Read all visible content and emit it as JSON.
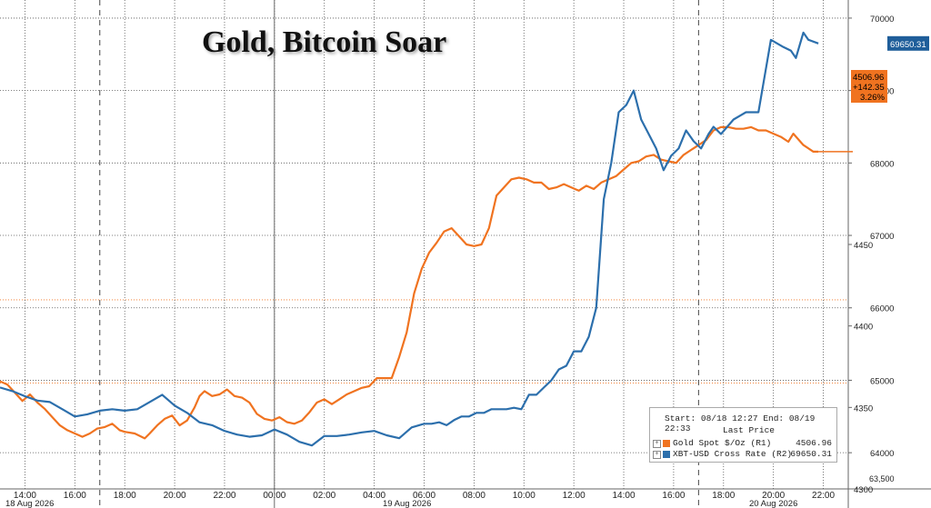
{
  "chart_data": {
    "type": "line",
    "title": "Gold, Bitcoin Soar",
    "x_tick_labels": [
      "14:00",
      "16:00",
      "18:00",
      "20:00",
      "22:00",
      "00:00",
      "02:00",
      "04:00",
      "06:00",
      "08:00",
      "10:00",
      "12:00",
      "14:00",
      "16:00",
      "18:00",
      "20:00",
      "22:00"
    ],
    "date_labels": [
      "18 Aug 2026",
      "19 Aug 2026",
      "20 Aug 2026"
    ],
    "y_left": {
      "ticks": [
        4300,
        4350,
        4400,
        4450
      ],
      "range": [
        4300,
        4600
      ],
      "tick_labels": [
        "4300",
        "4350",
        "4400",
        "4450"
      ]
    },
    "y_right": {
      "ticks": [
        64000,
        65000,
        66000,
        67000,
        68000,
        69000,
        70000
      ],
      "range": [
        63500,
        70250
      ],
      "tick_labels": [
        "64000",
        "65000",
        "66000",
        "67000",
        "68000",
        "69000",
        "70000"
      ]
    },
    "reference_lines_gold": [
      4365,
      4416
    ],
    "series": [
      {
        "name": "Gold Spot $/Oz (R1)",
        "axis": "left",
        "color": "#F07320",
        "last": "4506.96",
        "x": [
          13.0,
          13.3,
          13.6,
          13.9,
          14.2,
          14.5,
          14.8,
          15.1,
          15.4,
          15.7,
          16.0,
          16.3,
          16.6,
          16.9,
          17.2,
          17.5,
          17.8,
          18.0,
          18.4,
          18.8,
          19.0,
          19.3,
          19.6,
          19.9,
          20.2,
          20.5,
          20.8,
          21.0,
          21.2,
          21.5,
          21.8,
          22.1,
          22.4,
          22.7,
          23.0,
          23.3,
          23.6,
          23.9,
          24.2,
          24.5,
          24.8,
          25.1,
          25.4,
          25.7,
          26.0,
          26.3,
          26.6,
          26.9,
          27.2,
          27.5,
          27.8,
          28.1,
          28.4,
          28.7,
          29.0,
          29.3,
          29.6,
          29.9,
          30.2,
          30.5,
          30.8,
          31.1,
          31.4,
          31.7,
          32.0,
          32.3,
          32.6,
          32.9,
          33.2,
          33.5,
          33.8,
          34.1,
          34.4,
          34.7,
          35.0,
          35.3,
          35.6,
          35.9,
          36.2,
          36.5,
          36.8,
          37.1,
          37.4,
          37.7,
          38.0,
          38.3,
          38.6,
          38.9,
          39.2,
          39.5,
          39.8,
          40.1,
          40.4,
          40.7,
          41.0,
          41.3,
          41.6,
          41.9,
          42.2,
          42.5,
          42.8,
          43.1,
          43.4,
          43.7,
          44.0,
          44.3,
          44.6,
          44.8,
          45.2,
          45.6,
          45.8
        ],
        "values": [
          4366,
          4364,
          4359,
          4354,
          4358,
          4353,
          4349,
          4344,
          4339,
          4336,
          4334,
          4332,
          4334,
          4337,
          4338,
          4340,
          4336,
          4335,
          4334,
          4331,
          4334,
          4339,
          4343,
          4345,
          4339,
          4342,
          4350,
          4357,
          4360,
          4357,
          4358,
          4361,
          4357,
          4356,
          4353,
          4346,
          4343,
          4342,
          4344,
          4341,
          4340,
          4342,
          4347,
          4353,
          4355,
          4352,
          4355,
          4358,
          4360,
          4362,
          4363,
          4368,
          4368,
          4368,
          4381,
          4396,
          4420,
          4435,
          4445,
          4451,
          4458,
          4460,
          4455,
          4450,
          4449,
          4450,
          4460,
          4480,
          4485,
          4490,
          4491,
          4490,
          4488,
          4488,
          4484,
          4485,
          4487,
          4485,
          4483,
          4486,
          4484,
          4488,
          4490,
          4492,
          4496,
          4500,
          4501,
          4504,
          4505,
          4502,
          4501,
          4500,
          4505,
          4508,
          4511,
          4514,
          4520,
          4522,
          4522,
          4521,
          4521,
          4522,
          4520,
          4520,
          4518,
          4516,
          4513,
          4518,
          4511,
          4506.96,
          4506.96
        ]
      },
      {
        "name": "XBT-USD Cross Rate (R2)",
        "axis": "right",
        "color": "#2C6FAC",
        "last": "69650.31",
        "x": [
          13.0,
          13.5,
          14.0,
          14.5,
          15.0,
          15.5,
          16.0,
          16.5,
          17.0,
          17.5,
          18.0,
          18.5,
          19.0,
          19.5,
          20.0,
          20.5,
          21.0,
          21.5,
          22.0,
          22.5,
          23.0,
          23.5,
          24.0,
          24.5,
          25.0,
          25.5,
          26.0,
          26.5,
          27.0,
          27.5,
          28.0,
          28.5,
          29.0,
          29.5,
          30.0,
          30.3,
          30.6,
          30.9,
          31.2,
          31.5,
          31.8,
          32.1,
          32.4,
          32.7,
          33.0,
          33.3,
          33.6,
          33.9,
          34.2,
          34.5,
          34.8,
          35.1,
          35.4,
          35.7,
          36.0,
          36.3,
          36.6,
          36.9,
          37.2,
          37.5,
          37.8,
          38.1,
          38.4,
          38.7,
          39.0,
          39.3,
          39.6,
          39.9,
          40.2,
          40.5,
          40.8,
          41.1,
          41.4,
          41.6,
          41.9,
          42.4,
          42.9,
          43.4,
          43.9,
          44.4,
          44.7,
          44.9,
          45.2,
          45.4,
          45.8
        ],
        "values": [
          64900,
          64850,
          64780,
          64720,
          64700,
          64600,
          64500,
          64530,
          64580,
          64600,
          64580,
          64600,
          64700,
          64800,
          64650,
          64550,
          64420,
          64380,
          64300,
          64250,
          64220,
          64240,
          64320,
          64250,
          64150,
          64100,
          64230,
          64230,
          64250,
          64280,
          64300,
          64240,
          64200,
          64350,
          64400,
          64400,
          64420,
          64380,
          64450,
          64500,
          64500,
          64550,
          64550,
          64600,
          64600,
          64600,
          64620,
          64600,
          64800,
          64800,
          64900,
          65000,
          65150,
          65200,
          65400,
          65400,
          65600,
          66000,
          67500,
          68000,
          68700,
          68800,
          69000,
          68600,
          68400,
          68200,
          67900,
          68100,
          68200,
          68450,
          68300,
          68200,
          68400,
          68500,
          68400,
          68600,
          68700,
          68700,
          69700,
          69600,
          69550,
          69450,
          69800,
          69700,
          69650.31
        ]
      }
    ],
    "legend": {
      "line1": "Start: 08/18 12:27  End: 08/19 22:33",
      "line2": "Last Price"
    },
    "labels": {
      "gold_last": "4506.96",
      "gold_change": "+142.35",
      "gold_pct": "3.26%",
      "btc_last": "69650.31",
      "corner_label": "63,500"
    },
    "grid": true,
    "legend_placement": "bottom-right"
  }
}
